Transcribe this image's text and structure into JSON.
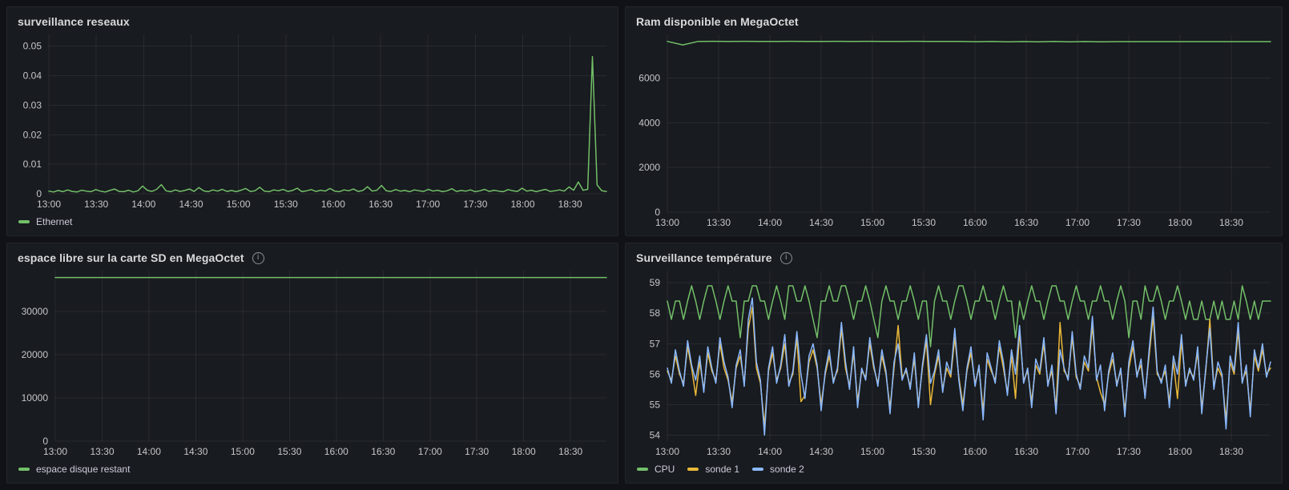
{
  "icons": {
    "info": "i"
  },
  "axis": {
    "x_tick_labels": [
      "13:00",
      "13:30",
      "14:00",
      "14:30",
      "15:00",
      "15:30",
      "16:00",
      "16:30",
      "17:00",
      "17:30",
      "18:00",
      "18:30"
    ]
  },
  "colors": {
    "background": "#111217",
    "panel": "#181b1f",
    "green": "#73bf69",
    "yellow": "#eab839",
    "blue": "#8ab8ff",
    "text": "#d8d9da",
    "tick_text": "#c5c6ca"
  },
  "chart_data": [
    {
      "type": "line",
      "title": "surveillance reseaux",
      "has_info": false,
      "legend_visible": true,
      "legend_position": "bottom",
      "grid": true,
      "ylim": [
        0,
        0.054
      ],
      "y_ticks": [
        {
          "v": 0,
          "label": "0"
        },
        {
          "v": 0.01,
          "label": "0.01"
        },
        {
          "v": 0.02,
          "label": "0.02"
        },
        {
          "v": 0.03,
          "label": "0.03"
        },
        {
          "v": 0.04,
          "label": "0.04"
        },
        {
          "v": 0.05,
          "label": "0.05"
        }
      ],
      "x_start_min": 0,
      "x_step_min": 30,
      "x_total_min": 353,
      "x_tick_labels": [
        "13:00",
        "13:30",
        "14:00",
        "14:30",
        "15:00",
        "15:30",
        "16:00",
        "16:30",
        "17:00",
        "17:30",
        "18:00",
        "18:30"
      ],
      "series": [
        {
          "name": "Ethernet",
          "color": "#73bf69",
          "values": [
            0.0009,
            0.0006,
            0.0011,
            0.0007,
            0.0013,
            0.0008,
            0.0006,
            0.0012,
            0.0009,
            0.0007,
            0.0014,
            0.0009,
            0.0006,
            0.0011,
            0.0016,
            0.0008,
            0.0007,
            0.0012,
            0.0006,
            0.001,
            0.0026,
            0.0012,
            0.0008,
            0.0015,
            0.0031,
            0.001,
            0.0007,
            0.0013,
            0.0008,
            0.0011,
            0.0016,
            0.0008,
            0.0021,
            0.001,
            0.0007,
            0.0013,
            0.0009,
            0.0015,
            0.0008,
            0.0011,
            0.0007,
            0.0012,
            0.0018,
            0.0008,
            0.001,
            0.0022,
            0.0009,
            0.0007,
            0.0013,
            0.001,
            0.0015,
            0.0008,
            0.0011,
            0.0019,
            0.0007,
            0.001,
            0.0014,
            0.0008,
            0.0012,
            0.0009,
            0.0018,
            0.0009,
            0.0007,
            0.0013,
            0.001,
            0.0016,
            0.0008,
            0.0011,
            0.0024,
            0.0009,
            0.0012,
            0.0028,
            0.001,
            0.0008,
            0.0014,
            0.0009,
            0.0011,
            0.0007,
            0.0013,
            0.001,
            0.0008,
            0.0015,
            0.0009,
            0.0012,
            0.0007,
            0.001,
            0.0017,
            0.0008,
            0.0011,
            0.0009,
            0.0013,
            0.0007,
            0.001,
            0.0015,
            0.0008,
            0.0012,
            0.0009,
            0.0007,
            0.0014,
            0.001,
            0.0008,
            0.0019,
            0.0009,
            0.0012,
            0.0007,
            0.0011,
            0.0015,
            0.0008,
            0.001,
            0.0013,
            0.0009,
            0.0023,
            0.0012,
            0.004,
            0.0012,
            0.0015,
            0.0465,
            0.003,
            0.001,
            0.0008
          ]
        }
      ]
    },
    {
      "type": "line",
      "title": "Ram disponible en MegaOctet",
      "has_info": false,
      "legend_visible": false,
      "legend_position": "none",
      "grid": true,
      "ylim": [
        0,
        7950
      ],
      "y_ticks": [
        {
          "v": 0,
          "label": "0"
        },
        {
          "v": 2000,
          "label": "2000"
        },
        {
          "v": 4000,
          "label": "4000"
        },
        {
          "v": 6000,
          "label": "6000"
        }
      ],
      "x_start_min": 0,
      "x_step_min": 30,
      "x_total_min": 353,
      "x_tick_labels": [
        "13:00",
        "13:30",
        "14:00",
        "14:30",
        "15:00",
        "15:30",
        "16:00",
        "16:30",
        "17:00",
        "17:30",
        "18:00",
        "18:30"
      ],
      "series": [
        {
          "name": "",
          "color": "#73bf69",
          "values": [
            7640,
            7480,
            7640,
            7642,
            7640,
            7641,
            7640,
            7640,
            7642,
            7640,
            7638,
            7641,
            7640,
            7642,
            7640,
            7640,
            7641,
            7640,
            7638,
            7640,
            7625,
            7638,
            7620,
            7632,
            7618,
            7636,
            7622,
            7630,
            7618,
            7628,
            7628,
            7628,
            7628,
            7628,
            7628,
            7628,
            7628,
            7628,
            7628,
            7628
          ]
        }
      ]
    },
    {
      "type": "line",
      "title": "espace libre sur la carte SD en MegaOctet",
      "has_info": true,
      "legend_visible": true,
      "legend_position": "bottom",
      "grid": true,
      "ylim": [
        0,
        39400
      ],
      "y_ticks": [
        {
          "v": 0,
          "label": "0"
        },
        {
          "v": 10000,
          "label": "10000"
        },
        {
          "v": 20000,
          "label": "20000"
        },
        {
          "v": 30000,
          "label": "30000"
        }
      ],
      "x_start_min": 0,
      "x_step_min": 30,
      "x_total_min": 353,
      "x_tick_labels": [
        "13:00",
        "13:30",
        "14:00",
        "14:30",
        "15:00",
        "15:30",
        "16:00",
        "16:30",
        "17:00",
        "17:30",
        "18:00",
        "18:30"
      ],
      "series": [
        {
          "name": "espace disque restant",
          "color": "#73bf69",
          "values": [
            37800,
            37800,
            37800,
            37800,
            37800,
            37800,
            37800,
            37800,
            37800,
            37800,
            37800,
            37800
          ]
        }
      ]
    },
    {
      "type": "line",
      "title": "Surveillance température",
      "has_info": true,
      "legend_visible": true,
      "legend_position": "bottom",
      "grid": true,
      "ylim": [
        53.8,
        59.4
      ],
      "y_ticks": [
        {
          "v": 54,
          "label": "54"
        },
        {
          "v": 55,
          "label": "55"
        },
        {
          "v": 56,
          "label": "56"
        },
        {
          "v": 57,
          "label": "57"
        },
        {
          "v": 58,
          "label": "58"
        },
        {
          "v": 59,
          "label": "59"
        }
      ],
      "x_start_min": 0,
      "x_step_min": 30,
      "x_total_min": 353,
      "x_tick_labels": [
        "13:00",
        "13:30",
        "14:00",
        "14:30",
        "15:00",
        "15:30",
        "16:00",
        "16:30",
        "17:00",
        "17:30",
        "18:00",
        "18:30"
      ],
      "series": [
        {
          "name": "CPU",
          "color": "#73bf69",
          "values": [
            58.4,
            57.8,
            58.4,
            58.4,
            57.8,
            58.4,
            58.9,
            58.4,
            57.8,
            58.4,
            58.9,
            58.9,
            58.4,
            57.8,
            58.4,
            58.9,
            58.4,
            58.4,
            57.2,
            58.4,
            58.4,
            58.9,
            58.9,
            58.4,
            58.4,
            57.8,
            58.4,
            58.9,
            58.4,
            57.8,
            58.9,
            58.9,
            58.4,
            58.4,
            58.9,
            58.4,
            57.8,
            57.2,
            58.4,
            58.4,
            58.9,
            58.4,
            58.4,
            58.9,
            58.9,
            58.4,
            57.8,
            58.4,
            58.4,
            58.9,
            58.4,
            57.8,
            57.2,
            58.4,
            58.9,
            58.4,
            58.4,
            57.8,
            58.4,
            58.4,
            58.9,
            58.4,
            57.8,
            58.4,
            58.4,
            56.9,
            58.4,
            58.9,
            58.4,
            58.4,
            57.8,
            58.4,
            58.9,
            58.9,
            58.4,
            57.8,
            58.4,
            58.4,
            58.9,
            58.4,
            58.4,
            57.8,
            58.4,
            58.9,
            58.4,
            58.4,
            57.2,
            58.4,
            57.8,
            58.4,
            58.9,
            58.4,
            58.4,
            57.8,
            58.4,
            58.9,
            58.9,
            58.4,
            58.4,
            57.8,
            58.4,
            58.9,
            58.4,
            58.4,
            57.8,
            58.4,
            58.4,
            58.9,
            58.4,
            58.4,
            57.8,
            58.4,
            58.9,
            58.4,
            57.2,
            58.4,
            58.4,
            57.8,
            58.9,
            58.4,
            58.4,
            58.9,
            58.4,
            57.8,
            58.4,
            58.4,
            58.9,
            58.4,
            57.8,
            58.4,
            57.8,
            57.8,
            58.4,
            57.8,
            57.8,
            58.4,
            57.8,
            58.4,
            57.8,
            57.8,
            58.4,
            57.8,
            58.9,
            58.4,
            57.8,
            58.4,
            57.8,
            58.4,
            58.4,
            58.4
          ]
        },
        {
          "name": "sonde 1",
          "color": "#eab839",
          "values": [
            56.1,
            55.8,
            56.6,
            56.0,
            55.7,
            56.9,
            56.2,
            55.3,
            56.4,
            55.5,
            56.7,
            56.1,
            55.8,
            57.0,
            56.2,
            55.8,
            55.1,
            56.2,
            56.6,
            55.7,
            57.5,
            58.2,
            56.2,
            55.7,
            54.3,
            56.1,
            56.7,
            55.8,
            56.2,
            57.0,
            55.7,
            56.0,
            57.2,
            55.1,
            55.3,
            56.4,
            56.8,
            56.2,
            55.0,
            56.0,
            56.6,
            55.8,
            56.1,
            57.5,
            56.2,
            55.6,
            56.7,
            55.1,
            56.1,
            55.9,
            57.0,
            56.2,
            55.7,
            56.6,
            56.0,
            54.9,
            56.2,
            57.6,
            55.9,
            56.1,
            55.6,
            56.5,
            55.0,
            56.2,
            57.1,
            55.0,
            56.0,
            56.6,
            55.5,
            56.2,
            55.9,
            57.2,
            55.9,
            55.0,
            56.1,
            56.7,
            55.7,
            56.2,
            54.8,
            56.5,
            56.1,
            55.8,
            56.9,
            56.2,
            55.4,
            56.6,
            55.2,
            57.4,
            55.8,
            56.1,
            55.1,
            56.3,
            56.0,
            57.0,
            55.7,
            56.1,
            54.9,
            57.7,
            56.1,
            55.9,
            57.2,
            55.9,
            55.6,
            56.4,
            56.1,
            57.6,
            55.9,
            55.4,
            55.0,
            56.0,
            56.5,
            55.7,
            56.1,
            54.8,
            56.2,
            56.9,
            56.0,
            56.3,
            55.3,
            56.6,
            57.9,
            56.0,
            55.8,
            56.1,
            55.1,
            56.4,
            55.2,
            57.1,
            55.7,
            56.1,
            55.9,
            56.7,
            54.9,
            56.1,
            57.8,
            55.6,
            56.2,
            55.9,
            54.5,
            56.4,
            56.0,
            57.4,
            55.8,
            56.1,
            54.8,
            56.6,
            56.1,
            56.8,
            56.0,
            56.2
          ]
        },
        {
          "name": "sonde 2",
          "color": "#8ab8ff",
          "values": [
            56.2,
            55.7,
            56.8,
            56.1,
            55.6,
            57.1,
            56.3,
            55.8,
            56.6,
            55.4,
            56.9,
            56.2,
            55.7,
            57.2,
            56.4,
            55.9,
            54.9,
            56.3,
            56.8,
            55.6,
            57.8,
            58.5,
            56.4,
            55.8,
            54.0,
            56.2,
            56.9,
            55.7,
            56.3,
            57.3,
            55.6,
            56.1,
            57.4,
            56.0,
            55.2,
            56.6,
            57.0,
            56.3,
            54.8,
            56.1,
            56.8,
            55.7,
            56.2,
            57.7,
            56.4,
            55.5,
            56.9,
            54.9,
            56.2,
            55.8,
            57.2,
            56.3,
            55.6,
            56.8,
            56.1,
            54.7,
            56.4,
            57.0,
            55.8,
            56.2,
            55.5,
            56.7,
            54.9,
            56.3,
            57.3,
            55.7,
            56.1,
            56.8,
            55.4,
            56.4,
            56.0,
            57.5,
            55.8,
            54.8,
            56.2,
            56.9,
            55.6,
            56.3,
            54.5,
            56.7,
            56.2,
            55.7,
            57.1,
            56.4,
            55.3,
            56.8,
            56.0,
            57.6,
            55.7,
            56.2,
            54.9,
            56.5,
            56.1,
            57.2,
            55.6,
            56.3,
            54.7,
            56.8,
            56.2,
            55.8,
            57.4,
            56.0,
            55.5,
            56.6,
            56.2,
            57.9,
            55.8,
            56.3,
            54.8,
            56.1,
            56.7,
            55.6,
            56.2,
            54.6,
            56.4,
            57.1,
            55.9,
            56.5,
            55.2,
            56.8,
            58.2,
            56.1,
            55.7,
            56.3,
            54.9,
            56.6,
            56.0,
            57.3,
            55.6,
            56.2,
            55.8,
            56.9,
            54.7,
            56.2,
            57.5,
            55.5,
            56.4,
            56.0,
            54.2,
            56.6,
            56.1,
            57.7,
            55.7,
            56.3,
            54.6,
            56.8,
            56.2,
            57.0,
            55.9,
            56.4
          ]
        }
      ]
    }
  ]
}
